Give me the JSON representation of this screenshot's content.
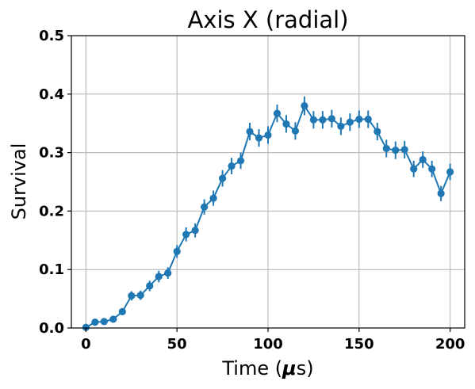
{
  "chart_data": {
    "type": "line",
    "title": "Axis X (radial)",
    "xlabel_prefix": "Time (",
    "xlabel_mu": "μ",
    "xlabel_suffix": "s)",
    "ylabel": "Survival",
    "xlim": [
      -8,
      208
    ],
    "ylim": [
      0.0,
      0.5
    ],
    "xticks": [
      0,
      50,
      100,
      150,
      200
    ],
    "xtick_labels": [
      "0",
      "50",
      "100",
      "150",
      "200"
    ],
    "yticks": [
      0.0,
      0.1,
      0.2,
      0.3,
      0.4,
      0.5
    ],
    "ytick_labels": [
      "0.0",
      "0.1",
      "0.2",
      "0.3",
      "0.4",
      "0.5"
    ],
    "grid": true,
    "color": "#1f77b4",
    "series": [
      {
        "x": [
          0,
          5,
          10,
          15,
          20,
          25,
          30,
          35,
          40,
          45,
          50,
          55,
          60,
          65,
          70,
          75,
          80,
          85,
          90,
          95,
          100,
          105,
          110,
          115,
          120,
          125,
          130,
          135,
          140,
          145,
          150,
          155,
          160,
          165,
          170,
          175,
          180,
          185,
          190,
          195,
          200
        ],
        "y": [
          0.001,
          0.01,
          0.011,
          0.015,
          0.028,
          0.055,
          0.056,
          0.072,
          0.088,
          0.094,
          0.131,
          0.16,
          0.167,
          0.207,
          0.222,
          0.256,
          0.277,
          0.286,
          0.336,
          0.325,
          0.33,
          0.367,
          0.349,
          0.337,
          0.38,
          0.356,
          0.356,
          0.358,
          0.345,
          0.352,
          0.357,
          0.357,
          0.336,
          0.307,
          0.304,
          0.305,
          0.272,
          0.288,
          0.272,
          0.23,
          0.267
        ],
        "yerr": [
          0.003,
          0.004,
          0.004,
          0.005,
          0.006,
          0.008,
          0.008,
          0.009,
          0.01,
          0.01,
          0.011,
          0.012,
          0.012,
          0.013,
          0.013,
          0.014,
          0.014,
          0.014,
          0.015,
          0.015,
          0.015,
          0.015,
          0.015,
          0.015,
          0.016,
          0.015,
          0.015,
          0.015,
          0.015,
          0.015,
          0.015,
          0.015,
          0.015,
          0.015,
          0.015,
          0.015,
          0.014,
          0.014,
          0.014,
          0.013,
          0.014
        ]
      }
    ]
  }
}
